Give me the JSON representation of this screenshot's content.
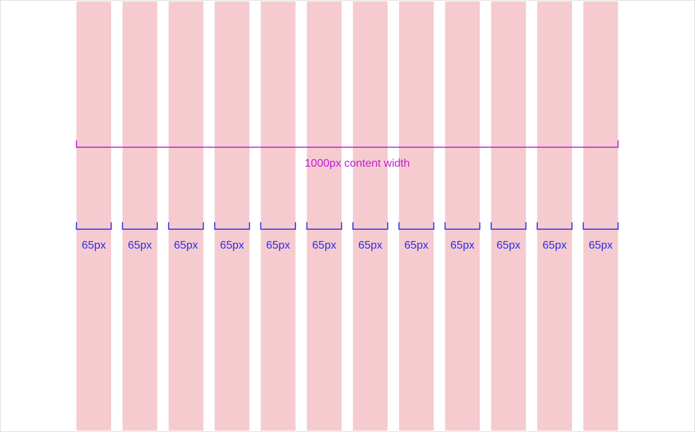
{
  "grid": {
    "column_count": 12,
    "column_color": "#f5cbd0",
    "column_width_label": "65px",
    "content_width_label": "1000px content width",
    "content_bracket_color": "#c21bd6",
    "column_bracket_color": "#2c2ce6"
  }
}
